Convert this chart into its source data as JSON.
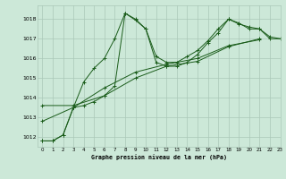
{
  "title": "Graphe pression niveau de la mer (hPa)",
  "bg_color": "#cce8d8",
  "grid_color": "#aac8b8",
  "line_color": "#1a5c1a",
  "xlim": [
    -0.5,
    23
  ],
  "ylim": [
    1011.5,
    1018.7
  ],
  "yticks": [
    1012,
    1013,
    1014,
    1015,
    1016,
    1017,
    1018
  ],
  "xticks": [
    0,
    1,
    2,
    3,
    4,
    5,
    6,
    7,
    8,
    9,
    10,
    11,
    12,
    13,
    14,
    15,
    16,
    17,
    18,
    19,
    20,
    21,
    22,
    23
  ],
  "series": [
    {
      "x": [
        0,
        1,
        2,
        3,
        4,
        5,
        6,
        7,
        8,
        9,
        10,
        11,
        12,
        13,
        14,
        15,
        16,
        17,
        18,
        19,
        20,
        21,
        22,
        23
      ],
      "y": [
        1011.8,
        1011.8,
        1012.1,
        1013.5,
        1014.8,
        1015.5,
        1016.0,
        1017.0,
        1018.3,
        1017.95,
        1017.5,
        1016.1,
        1015.8,
        1015.8,
        1016.1,
        1016.4,
        1016.9,
        1017.5,
        1018.0,
        1017.8,
        1017.5,
        1017.5,
        1017.1,
        1017.0
      ]
    },
    {
      "x": [
        0,
        1,
        2,
        3,
        4,
        5,
        6,
        7,
        8,
        9,
        10,
        11,
        12,
        13,
        14,
        15,
        16,
        17,
        18,
        19,
        20,
        21,
        22,
        23
      ],
      "y": [
        1011.8,
        1011.8,
        1012.1,
        1013.5,
        1013.6,
        1013.8,
        1014.1,
        1014.6,
        1018.3,
        1018.0,
        1017.5,
        1015.8,
        1015.6,
        1015.6,
        1015.8,
        1016.2,
        1016.8,
        1017.3,
        1018.0,
        1017.75,
        1017.6,
        1017.5,
        1017.0,
        1017.0
      ]
    },
    {
      "x": [
        0,
        3,
        6,
        9,
        12,
        15,
        18,
        21
      ],
      "y": [
        1013.6,
        1013.6,
        1014.1,
        1015.0,
        1015.6,
        1015.85,
        1016.6,
        1017.0
      ]
    },
    {
      "x": [
        0,
        3,
        6,
        9,
        12,
        15,
        18,
        21
      ],
      "y": [
        1012.8,
        1013.5,
        1014.5,
        1015.3,
        1015.7,
        1016.0,
        1016.65,
        1016.95
      ]
    }
  ]
}
